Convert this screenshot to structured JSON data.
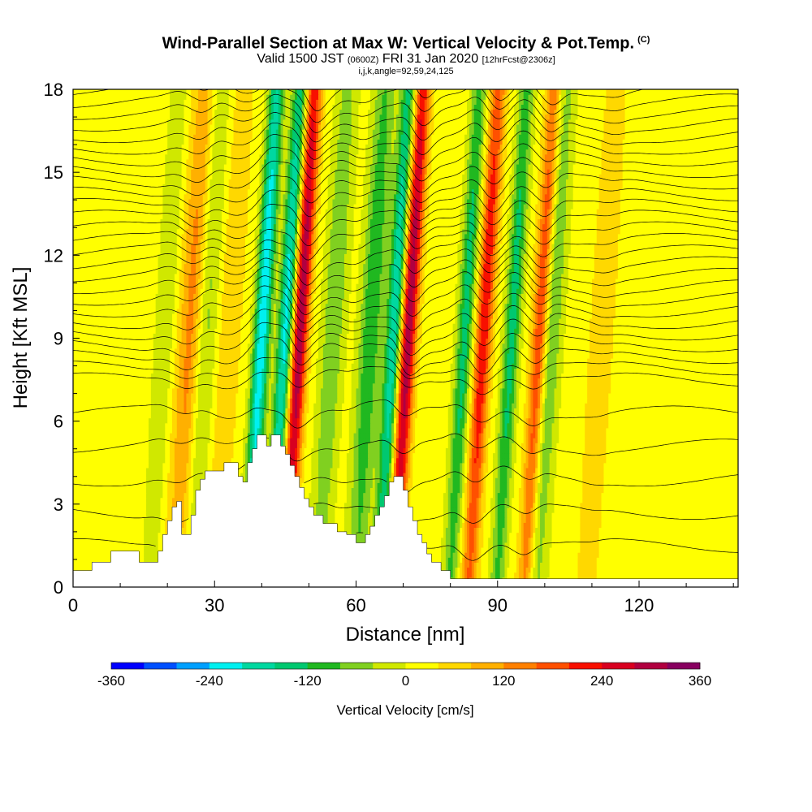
{
  "title": {
    "main": "Wind-Parallel Section at Max W: Vertical Velocity & Pot.Temp.",
    "main_suffix": "(C)",
    "valid_prefix": "Valid 1500 JST",
    "valid_zulu": "(0600Z)",
    "valid_date": "FRI 31 Jan 2020",
    "valid_fcst": "[12hrFcst@2306z]",
    "indices": "i,j,k,angle=92,59,24,125"
  },
  "chart_data": {
    "type": "heatmap",
    "xlabel": "Distance [nm]",
    "ylabel": "Height [Kft MSL]",
    "xlim": [
      0,
      141
    ],
    "ylim": [
      0,
      18
    ],
    "x_ticks": [
      "0",
      "30",
      "60",
      "90",
      "120"
    ],
    "y_ticks": [
      "0",
      "3",
      "6",
      "9",
      "12",
      "15",
      "18"
    ],
    "x_tick_values": [
      0,
      30,
      60,
      90,
      120
    ],
    "y_tick_values": [
      0,
      3,
      6,
      9,
      12,
      15,
      18
    ],
    "colorbar": {
      "title": "Vertical Velocity [cm/s]",
      "min": -360,
      "max": 360,
      "step": 40,
      "tick_labels": [
        "-360",
        "-240",
        "-120",
        "0",
        "120",
        "240",
        "360"
      ],
      "tick_values": [
        -360,
        -240,
        -120,
        0,
        120,
        240,
        360
      ],
      "colors": [
        "#0000ff",
        "#0050ff",
        "#00a0ff",
        "#00f0f0",
        "#00d8a0",
        "#00c870",
        "#20b820",
        "#80d020",
        "#d0e800",
        "#ffff00",
        "#ffd800",
        "#ffb000",
        "#ff8000",
        "#ff5000",
        "#f81000",
        "#d80020",
        "#b00040",
        "#880060"
      ]
    },
    "updrafts_w_cm_s": [
      {
        "x": 21,
        "w": 60
      },
      {
        "x": 25,
        "w": 120
      },
      {
        "x": 33,
        "w": 60
      },
      {
        "x": 48,
        "w": 300
      },
      {
        "x": 71,
        "w": 300
      },
      {
        "x": 87,
        "w": 220
      },
      {
        "x": 99,
        "w": 220
      },
      {
        "x": 112,
        "w": 60
      }
    ],
    "downdrafts_w_cm_s": [
      {
        "x": 20,
        "w": -100
      },
      {
        "x": 28,
        "w": -80
      },
      {
        "x": 40,
        "w": -260
      },
      {
        "x": 45,
        "w": -240
      },
      {
        "x": 55,
        "w": -100
      },
      {
        "x": 63,
        "w": -140
      },
      {
        "x": 68,
        "w": -220
      },
      {
        "x": 83,
        "w": -160
      },
      {
        "x": 93,
        "w": -160
      },
      {
        "x": 101,
        "w": -120
      }
    ],
    "terrain_kft": [
      [
        0,
        0.6
      ],
      [
        4,
        0.6
      ],
      [
        4,
        0.9
      ],
      [
        8,
        0.9
      ],
      [
        8,
        1.3
      ],
      [
        14,
        1.3
      ],
      [
        14,
        0.9
      ],
      [
        18,
        0.9
      ],
      [
        18,
        1.3
      ],
      [
        19,
        1.3
      ],
      [
        19,
        1.9
      ],
      [
        20,
        1.9
      ],
      [
        20,
        2.4
      ],
      [
        21,
        2.4
      ],
      [
        21,
        2.9
      ],
      [
        22,
        2.9
      ],
      [
        22,
        3.1
      ],
      [
        23,
        3.1
      ],
      [
        23,
        1.9
      ],
      [
        25,
        1.9
      ],
      [
        25,
        2.6
      ],
      [
        26,
        2.6
      ],
      [
        26,
        3.5
      ],
      [
        27,
        3.5
      ],
      [
        27,
        3.9
      ],
      [
        28,
        3.9
      ],
      [
        28,
        4.2
      ],
      [
        32,
        4.2
      ],
      [
        32,
        4.5
      ],
      [
        35,
        4.5
      ],
      [
        35,
        4.0
      ],
      [
        36,
        4.0
      ],
      [
        36,
        3.8
      ],
      [
        37,
        3.8
      ],
      [
        37,
        4.5
      ],
      [
        38,
        4.5
      ],
      [
        38,
        5.0
      ],
      [
        39,
        5.0
      ],
      [
        39,
        5.5
      ],
      [
        41,
        5.5
      ],
      [
        41,
        5.1
      ],
      [
        42,
        5.1
      ],
      [
        42,
        5.5
      ],
      [
        44,
        5.5
      ],
      [
        44,
        5.1
      ],
      [
        45,
        5.1
      ],
      [
        45,
        4.8
      ],
      [
        46,
        4.8
      ],
      [
        46,
        4.4
      ],
      [
        47,
        4.4
      ],
      [
        47,
        4.0
      ],
      [
        48,
        4.0
      ],
      [
        48,
        3.6
      ],
      [
        49,
        3.6
      ],
      [
        49,
        3.2
      ],
      [
        50,
        3.2
      ],
      [
        50,
        2.9
      ],
      [
        51,
        2.9
      ],
      [
        51,
        2.6
      ],
      [
        53,
        2.6
      ],
      [
        53,
        2.3
      ],
      [
        56,
        2.3
      ],
      [
        56,
        2.0
      ],
      [
        58,
        2.0
      ],
      [
        58,
        1.9
      ],
      [
        60,
        1.9
      ],
      [
        60,
        1.6
      ],
      [
        62,
        1.6
      ],
      [
        62,
        1.9
      ],
      [
        63,
        1.9
      ],
      [
        63,
        2.2
      ],
      [
        64,
        2.2
      ],
      [
        64,
        2.6
      ],
      [
        65,
        2.6
      ],
      [
        65,
        2.9
      ],
      [
        66,
        2.9
      ],
      [
        66,
        3.3
      ],
      [
        67,
        3.3
      ],
      [
        67,
        3.8
      ],
      [
        68,
        3.8
      ],
      [
        68,
        4.0
      ],
      [
        70,
        4.0
      ],
      [
        70,
        3.5
      ],
      [
        71,
        3.5
      ],
      [
        71,
        2.9
      ],
      [
        72,
        2.9
      ],
      [
        72,
        2.4
      ],
      [
        73,
        2.4
      ],
      [
        73,
        1.9
      ],
      [
        74,
        1.9
      ],
      [
        74,
        1.6
      ],
      [
        75,
        1.6
      ],
      [
        75,
        1.2
      ],
      [
        76,
        1.2
      ],
      [
        76,
        0.9
      ],
      [
        78,
        0.9
      ],
      [
        78,
        0.6
      ],
      [
        80,
        0.6
      ],
      [
        80,
        0.3
      ],
      [
        141,
        0.3
      ]
    ],
    "isentropes": "potential temperature, unlabeled scale (contours every 1 C)"
  }
}
